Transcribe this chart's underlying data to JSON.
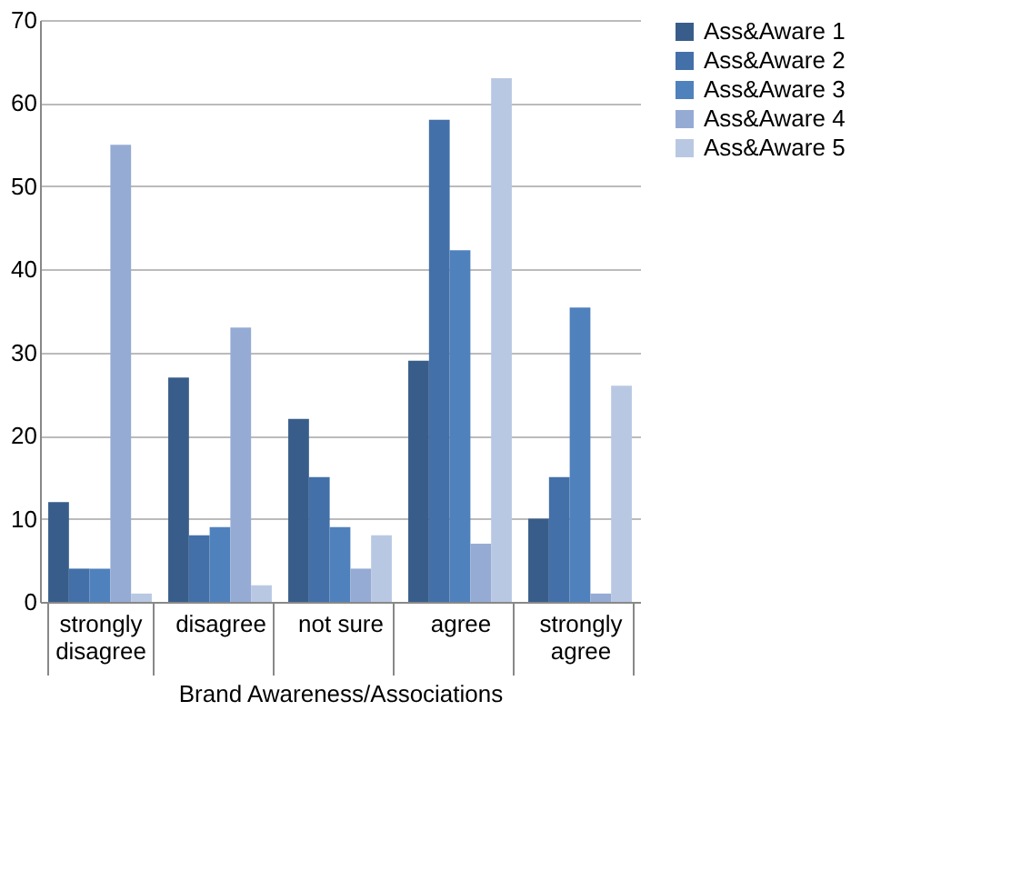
{
  "chart_data": {
    "type": "bar",
    "xlabel": "Brand Awareness/Associations",
    "categories": [
      "strongly disagree",
      "disagree",
      "not sure",
      "agree",
      "strongly agree"
    ],
    "series": [
      {
        "name": "Ass&Aware 1",
        "color": "#385d8a",
        "values": [
          12,
          27,
          22,
          29,
          10
        ]
      },
      {
        "name": "Ass&Aware 2",
        "color": "#4370a8",
        "values": [
          4,
          8,
          15,
          58,
          15
        ]
      },
      {
        "name": "Ass&Aware 3",
        "color": "#4f81bd",
        "values": [
          4,
          9,
          9,
          42.3,
          35.4
        ]
      },
      {
        "name": "Ass&Aware 4",
        "color": "#95abd4",
        "values": [
          55,
          33,
          4,
          7,
          1
        ]
      },
      {
        "name": "Ass&Aware 5",
        "color": "#b9c8e2",
        "values": [
          1,
          2,
          8,
          63,
          26
        ]
      }
    ],
    "ylim": [
      0,
      70
    ],
    "yticks": [
      0,
      10,
      20,
      30,
      40,
      50,
      60,
      70
    ],
    "grid": "y",
    "legend": "right"
  }
}
